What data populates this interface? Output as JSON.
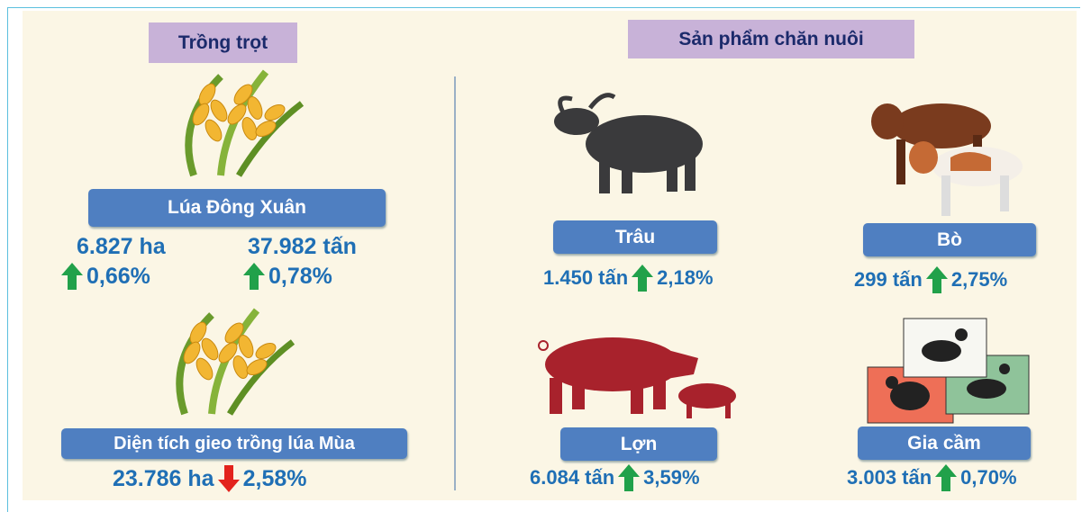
{
  "crops": {
    "header": "Trồng trọt",
    "items": [
      {
        "label": "Lúa Đông Xuân",
        "stats": [
          {
            "value": "6.827 ha",
            "change": "0,66%",
            "direction": "up"
          },
          {
            "value": "37.982 tấn",
            "change": "0,78%",
            "direction": "up"
          }
        ]
      },
      {
        "label": "Diện tích gieo trồng lúa Mùa",
        "stats": [
          {
            "value": "23.786 ha",
            "change": "2,58%",
            "direction": "down"
          }
        ]
      }
    ]
  },
  "livestock": {
    "header": "Sản phẩm chăn nuôi",
    "items": [
      {
        "label": "Trâu",
        "value": "1.450 tấn",
        "change": "2,18%",
        "direction": "up"
      },
      {
        "label": "Bò",
        "value": "299 tấn",
        "change": "2,75%",
        "direction": "up"
      },
      {
        "label": "Lợn",
        "value": "6.084 tấn",
        "change": "3,59%",
        "direction": "up"
      },
      {
        "label": "Gia cầm",
        "value": "3.003 tấn",
        "change": "0,70%",
        "direction": "up"
      }
    ]
  }
}
